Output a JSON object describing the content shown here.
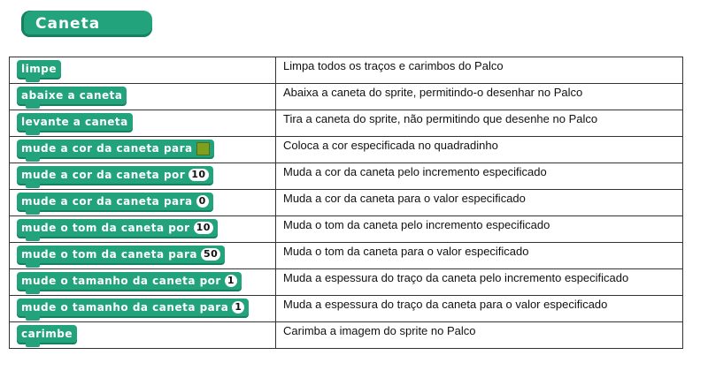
{
  "header": {
    "title": "Caneta"
  },
  "colors": {
    "block": "#22a37b",
    "swatch": "#7f9f1f"
  },
  "rows": [
    {
      "block": "limpe",
      "desc": "Limpa todos os traços e carimbos do Palco"
    },
    {
      "block": "abaixe a caneta",
      "desc": "Abaixa a caneta do sprite, permitindo-o desenhar no Palco"
    },
    {
      "block": "levante a caneta",
      "desc": "Tira a caneta do sprite, não permitindo que  desenhe no Palco"
    },
    {
      "block": "mude a cor da caneta para",
      "desc": "Coloca a cor especificada no quadradinho"
    },
    {
      "block": "mude a cor da caneta por",
      "value": "10",
      "desc": "Muda a cor da caneta pelo incremento especificado"
    },
    {
      "block": "mude a cor da caneta para",
      "value": "0",
      "desc": "Muda a cor da caneta para o valor especificado"
    },
    {
      "block": "mude o tom da caneta por",
      "value": "10",
      "desc": "Muda o tom da caneta pelo incremento especificado"
    },
    {
      "block": "mude o tom da caneta para",
      "value": "50",
      "desc": "Muda o tom da caneta para o valor especificado"
    },
    {
      "block": "mude o tamanho da caneta por",
      "value": "1",
      "desc": "Muda a espessura do traço da caneta pelo incremento especificado"
    },
    {
      "block": "mude o tamanho da caneta para",
      "value": "1",
      "desc": "Muda a espessura do traço da caneta para o valor especificado"
    },
    {
      "block": "carimbe",
      "desc": "Carimba a imagem do sprite no Palco"
    }
  ]
}
